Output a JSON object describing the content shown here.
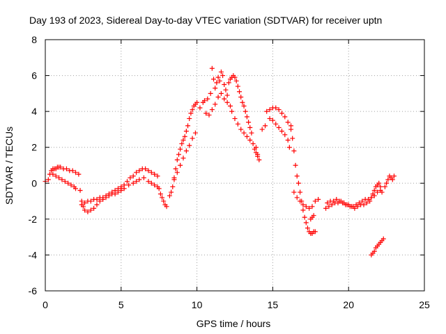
{
  "chart_data": {
    "type": "scatter",
    "title": "Day 193 of 2023, Sidereal Day-to-day VTEC variation (SDTVAR) for receiver uptn",
    "xlabel": "GPS time / hours",
    "ylabel": "SDTVAR / TECUs",
    "xlim": [
      0,
      25
    ],
    "ylim": [
      -6,
      8
    ],
    "xticks": [
      "0",
      "5",
      "10",
      "15",
      "20",
      "25"
    ],
    "yticks": [
      "-6",
      "-4",
      "-2",
      "0",
      "2",
      "4",
      "6",
      "8"
    ],
    "grid": true,
    "marker": "+",
    "series": [
      {
        "name": "SDTVAR",
        "color": "#ff0000",
        "x": [
          0.0,
          0.2,
          0.3,
          0.4,
          0.5,
          0.6,
          0.7,
          0.8,
          0.9,
          1.0,
          1.2,
          1.4,
          1.6,
          1.8,
          2.0,
          2.2,
          0.5,
          0.7,
          0.9,
          1.1,
          1.3,
          1.5,
          1.7,
          1.9,
          2.0,
          2.3,
          2.4,
          2.5,
          2.6,
          2.8,
          3.0,
          3.2,
          3.4,
          3.6,
          3.8,
          4.0,
          4.2,
          4.4,
          4.6,
          4.8,
          5.0,
          5.2,
          2.4,
          2.6,
          2.8,
          3.0,
          3.2,
          3.4,
          3.6,
          3.8,
          4.0,
          4.2,
          4.4,
          4.6,
          4.8,
          5.0,
          5.0,
          5.2,
          5.4,
          5.6,
          5.8,
          6.0,
          6.2,
          6.4,
          6.6,
          6.8,
          7.0,
          7.2,
          7.4,
          5.5,
          5.8,
          6.0,
          6.2,
          6.5,
          6.8,
          7.0,
          7.2,
          7.4,
          7.5,
          7.6,
          7.7,
          7.8,
          7.9,
          8.0,
          8.2,
          8.3,
          8.4,
          8.5,
          8.6,
          8.7,
          8.8,
          8.9,
          9.0,
          9.1,
          9.2,
          9.3,
          9.4,
          9.5,
          9.6,
          9.7,
          9.8,
          9.9,
          10.0,
          8.5,
          8.7,
          8.9,
          9.1,
          9.3,
          9.5,
          9.7,
          9.9,
          10.2,
          10.4,
          10.5,
          10.7,
          10.9,
          11.0,
          11.1,
          11.2,
          11.3,
          11.4,
          11.5,
          11.6,
          11.7,
          11.8,
          11.9,
          12.0,
          10.6,
          10.8,
          11.0,
          11.2,
          11.4,
          11.6,
          11.8,
          12.0,
          12.2,
          12.1,
          12.2,
          12.3,
          12.4,
          12.5,
          12.6,
          12.7,
          12.8,
          12.9,
          13.0,
          13.1,
          13.2,
          13.3,
          13.4,
          13.5,
          13.6,
          12.3,
          12.5,
          12.7,
          12.9,
          13.1,
          13.3,
          13.5,
          13.7,
          13.9,
          14.0,
          13.8,
          13.9,
          14.0,
          14.1,
          14.3,
          14.5,
          14.6,
          14.8,
          15.0,
          15.2,
          15.4,
          15.6,
          15.8,
          16.0,
          16.2,
          14.8,
          15.0,
          15.2,
          15.4,
          15.6,
          15.8,
          16.0,
          16.1,
          16.2,
          16.3,
          16.4,
          16.5,
          16.6,
          16.7,
          16.8,
          16.9,
          17.0,
          17.1,
          17.2,
          17.3,
          17.4,
          17.5,
          17.6,
          17.7,
          17.8,
          16.4,
          16.6,
          16.8,
          17.0,
          17.2,
          17.4,
          17.6,
          17.8,
          18.0,
          17.5,
          17.6,
          17.7,
          18.5,
          18.7,
          18.9,
          19.1,
          19.3,
          19.5,
          19.7,
          19.9,
          20.1,
          20.3,
          20.5,
          20.7,
          20.9,
          21.1,
          21.3,
          21.5,
          21.7,
          21.9,
          22.1,
          18.6,
          18.8,
          19.0,
          19.2,
          19.4,
          19.6,
          19.8,
          20.0,
          20.2,
          20.4,
          20.6,
          20.8,
          21.0,
          21.2,
          21.4,
          21.5,
          21.6,
          21.7,
          21.8,
          21.9,
          22.0,
          22.1,
          22.2,
          22.4,
          22.5,
          22.6,
          22.7,
          22.8,
          22.9,
          23.0,
          21.5,
          21.6,
          21.7,
          21.8,
          21.9,
          22.0,
          22.1,
          22.2,
          22.3
        ],
        "y": [
          0.1,
          0.2,
          0.5,
          0.7,
          0.8,
          0.8,
          0.8,
          0.9,
          0.9,
          0.9,
          0.8,
          0.8,
          0.7,
          0.7,
          0.6,
          0.5,
          0.5,
          0.4,
          0.3,
          0.2,
          0.1,
          0.0,
          -0.1,
          -0.2,
          -0.3,
          -0.4,
          -1.0,
          -1.3,
          -1.5,
          -1.6,
          -1.5,
          -1.4,
          -1.2,
          -1.0,
          -0.9,
          -0.8,
          -0.7,
          -0.6,
          -0.6,
          -0.5,
          -0.4,
          -0.3,
          -1.2,
          -1.1,
          -1.0,
          -1.0,
          -0.9,
          -0.9,
          -0.8,
          -0.8,
          -0.7,
          -0.6,
          -0.5,
          -0.4,
          -0.3,
          -0.2,
          -0.3,
          -0.1,
          0.1,
          0.3,
          0.4,
          0.6,
          0.7,
          0.8,
          0.8,
          0.7,
          0.6,
          0.5,
          0.4,
          -0.1,
          0.0,
          0.1,
          0.2,
          0.3,
          0.1,
          0.0,
          -0.1,
          -0.2,
          -0.3,
          -0.6,
          -0.8,
          -1.0,
          -1.2,
          -1.3,
          -0.7,
          -0.5,
          -0.2,
          0.3,
          0.8,
          1.3,
          1.6,
          1.9,
          2.2,
          2.4,
          2.6,
          2.9,
          3.2,
          3.6,
          3.9,
          4.1,
          4.3,
          4.4,
          4.5,
          0.2,
          0.6,
          1.0,
          1.4,
          1.8,
          2.1,
          2.5,
          2.8,
          4.2,
          4.5,
          4.6,
          4.7,
          5.0,
          6.4,
          5.8,
          5.3,
          5.6,
          5.9,
          5.7,
          6.2,
          6.0,
          5.5,
          5.2,
          4.9,
          3.9,
          3.8,
          4.1,
          4.4,
          4.8,
          5.0,
          4.7,
          4.5,
          4.3,
          5.6,
          5.8,
          5.9,
          6.0,
          5.9,
          5.7,
          5.4,
          5.1,
          4.8,
          4.5,
          4.3,
          4.0,
          3.7,
          3.4,
          3.1,
          2.8,
          4.0,
          3.6,
          3.3,
          3.0,
          2.8,
          2.6,
          2.4,
          2.2,
          2.0,
          1.6,
          1.9,
          1.7,
          1.5,
          1.3,
          3.0,
          3.2,
          4.0,
          4.1,
          4.2,
          4.2,
          4.1,
          3.9,
          3.7,
          3.4,
          3.0,
          3.6,
          3.5,
          3.3,
          3.1,
          2.9,
          2.7,
          2.4,
          2.0,
          3.2,
          2.5,
          1.8,
          1.0,
          0.4,
          0.0,
          -0.5,
          -1.0,
          -1.5,
          -1.9,
          -2.2,
          -2.5,
          -2.7,
          -2.8,
          -2.8,
          -2.7,
          -2.7,
          -0.5,
          -0.8,
          -1.0,
          -1.2,
          -1.3,
          -1.4,
          -1.3,
          -1.0,
          -0.9,
          -2.0,
          -1.9,
          -1.8,
          -1.4,
          -1.3,
          -1.2,
          -1.1,
          -1.1,
          -1.0,
          -1.1,
          -1.2,
          -1.3,
          -1.3,
          -1.2,
          -1.1,
          -1.0,
          -0.9,
          -0.9,
          -0.8,
          -0.7,
          -0.5,
          -0.4,
          -1.1,
          -1.0,
          -1.0,
          -0.9,
          -1.0,
          -1.1,
          -1.2,
          -1.2,
          -1.3,
          -1.4,
          -1.3,
          -1.2,
          -1.2,
          -1.1,
          -1.0,
          -0.8,
          -0.6,
          -0.4,
          -0.2,
          -0.1,
          0.0,
          -0.2,
          -0.5,
          -0.2,
          0.0,
          0.2,
          0.4,
          0.3,
          0.2,
          0.4,
          -4.0,
          -3.9,
          -3.8,
          -3.6,
          -3.5,
          -3.4,
          -3.3,
          -3.2,
          -3.1
        ]
      }
    ]
  }
}
